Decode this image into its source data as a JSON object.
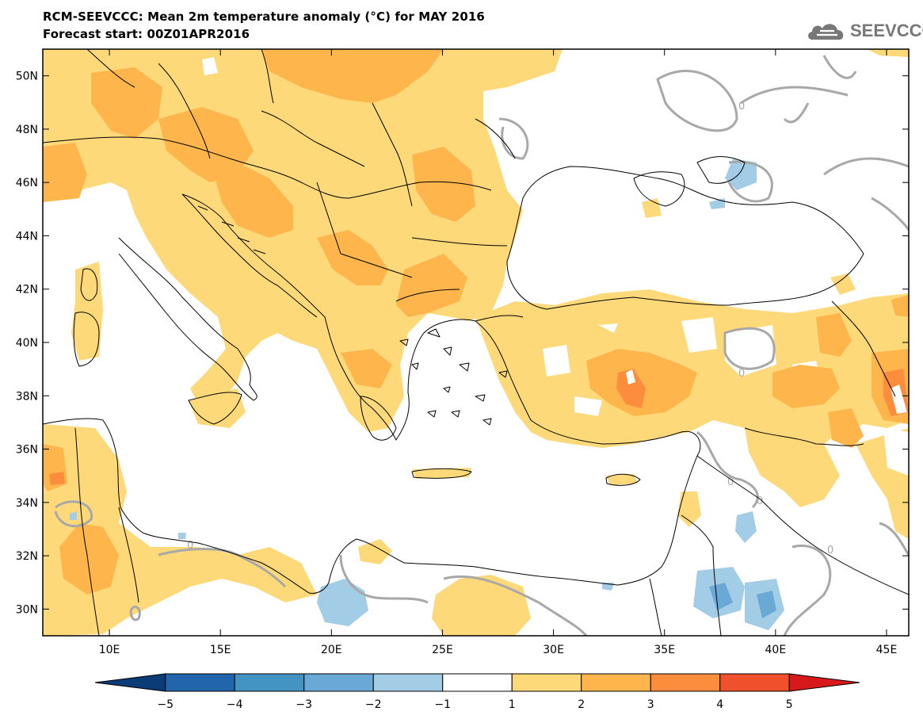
{
  "header": {
    "title": "RCM-SEEVCCC: Mean 2m temperature anomaly (°C) for MAY 2016",
    "subtitle": "Forecast start: 00Z01APR2016"
  },
  "logo": {
    "text": "SEEVCCC"
  },
  "map": {
    "lon_range": [
      7,
      46
    ],
    "lat_range": [
      29,
      51
    ],
    "lon_ticks": [
      {
        "value": 10,
        "label": "10E"
      },
      {
        "value": 15,
        "label": "15E"
      },
      {
        "value": 20,
        "label": "20E"
      },
      {
        "value": 25,
        "label": "25E"
      },
      {
        "value": 30,
        "label": "30E"
      },
      {
        "value": 35,
        "label": "35E"
      },
      {
        "value": 40,
        "label": "40E"
      },
      {
        "value": 45,
        "label": "45E"
      }
    ],
    "lat_ticks": [
      {
        "value": 50,
        "label": "50N"
      },
      {
        "value": 48,
        "label": "48N"
      },
      {
        "value": 46,
        "label": "46N"
      },
      {
        "value": 44,
        "label": "44N"
      },
      {
        "value": 42,
        "label": "42N"
      },
      {
        "value": 40,
        "label": "40N"
      },
      {
        "value": 38,
        "label": "38N"
      },
      {
        "value": 36,
        "label": "36N"
      },
      {
        "value": 34,
        "label": "34N"
      },
      {
        "value": 32,
        "label": "32N"
      },
      {
        "value": 30,
        "label": "30N"
      }
    ],
    "contour_labels": [
      "0",
      "0",
      "0",
      "0",
      "0",
      "0"
    ]
  },
  "colorbar": {
    "colors": [
      "#0b3c78",
      "#2166ac",
      "#4393c3",
      "#6aa9d6",
      "#a3cde6",
      "#ffffff",
      "#fdd97a",
      "#fdb54c",
      "#fc8d3c",
      "#f0502b",
      "#d7191c"
    ],
    "labels": [
      "−5",
      "−4",
      "−3",
      "−2",
      "−1",
      "1",
      "2",
      "3",
      "4",
      "5"
    ]
  },
  "colors": {
    "anomaly_1_2": "#fdd97a",
    "anomaly_2_3": "#fdb54c",
    "anomaly_3_4": "#fc8d3c",
    "anomaly_neg_1_2": "#a3cde6",
    "anomaly_neg_2_3": "#6aa9d6",
    "zero_contour": "#a8a8a8",
    "border": "#000000"
  }
}
